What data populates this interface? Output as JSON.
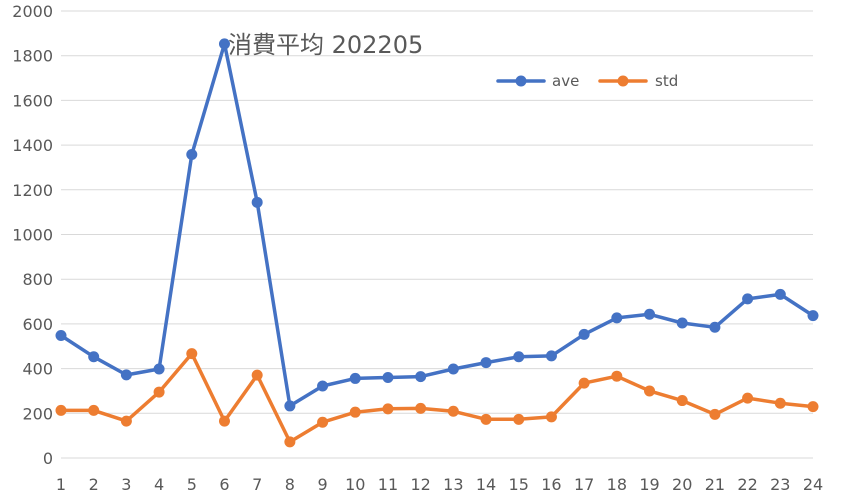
{
  "chart_data": {
    "type": "line",
    "title": "消費平均 202205",
    "xlabel": "",
    "ylabel": "",
    "x": [
      1,
      2,
      3,
      4,
      5,
      6,
      7,
      8,
      9,
      10,
      11,
      12,
      13,
      14,
      15,
      16,
      17,
      18,
      19,
      20,
      21,
      22,
      23,
      24
    ],
    "ylim": [
      0,
      2000
    ],
    "yticks": [
      0,
      200,
      400,
      600,
      800,
      1000,
      1200,
      1400,
      1600,
      1800,
      2000
    ],
    "grid": true,
    "legend_position": "top-right",
    "series": [
      {
        "name": "ave",
        "color": "#4472C4",
        "values": [
          548,
          453,
          372,
          398,
          1358,
          1853,
          1144,
          233,
          322,
          356,
          360,
          364,
          398,
          427,
          453,
          457,
          553,
          627,
          643,
          604,
          585,
          712,
          732,
          637
        ]
      },
      {
        "name": "std",
        "color": "#ED7D31",
        "values": [
          213,
          213,
          165,
          295,
          467,
          165,
          371,
          72,
          160,
          205,
          220,
          222,
          209,
          173,
          173,
          184,
          335,
          366,
          300,
          257,
          195,
          268,
          245,
          230
        ]
      }
    ]
  }
}
